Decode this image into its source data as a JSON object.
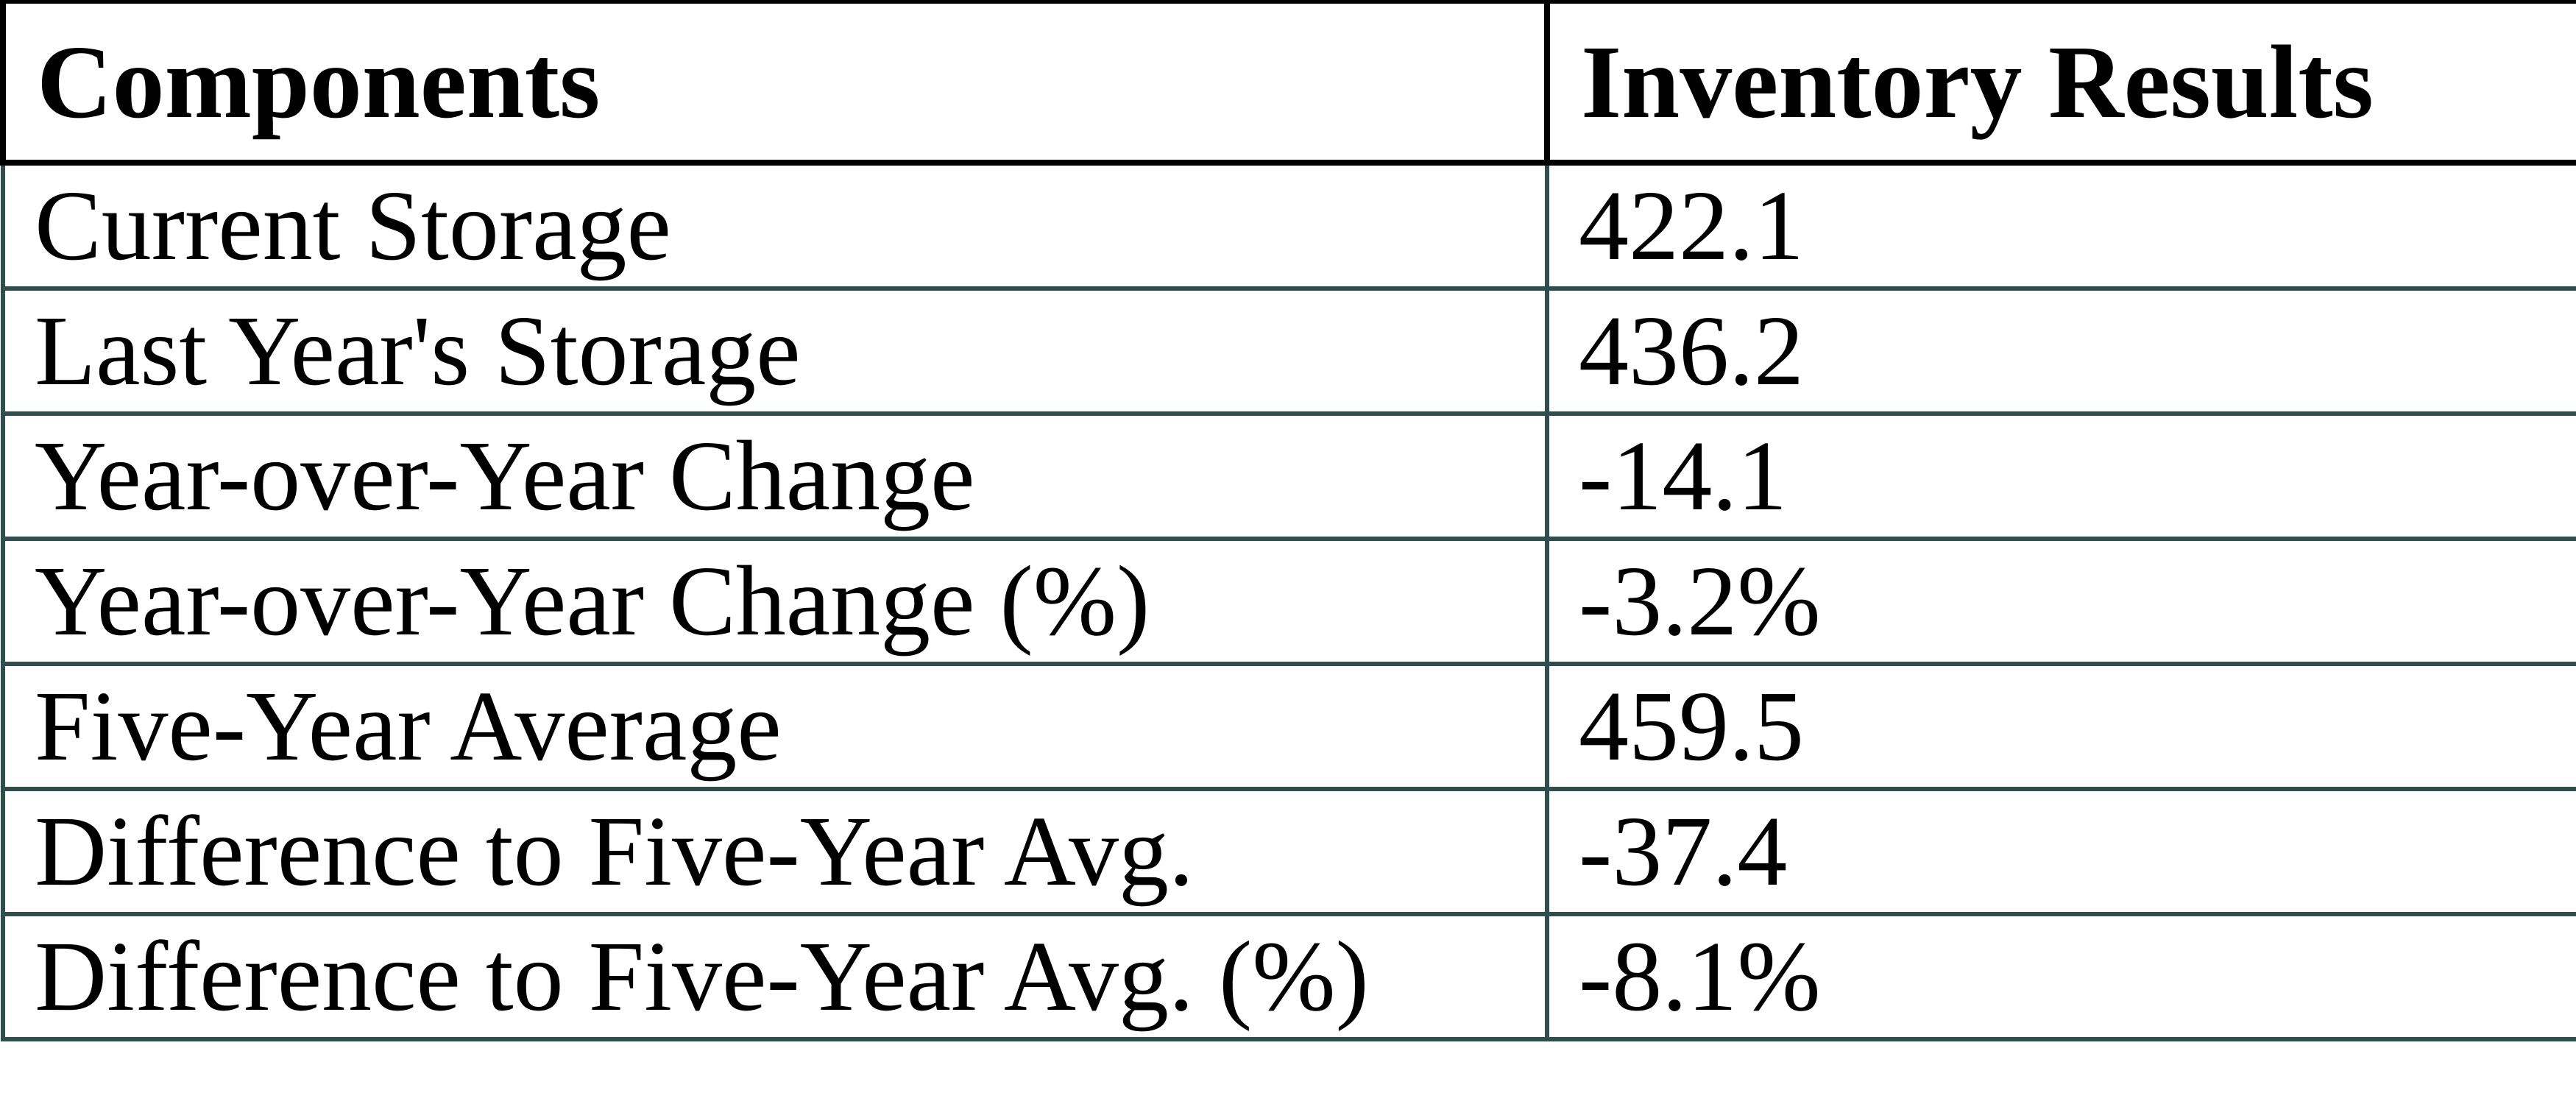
{
  "table": {
    "columns": [
      "Components",
      "Inventory Results"
    ],
    "rows": [
      {
        "component": "Current Storage",
        "value": "422.1"
      },
      {
        "component": "Last Year's Storage",
        "value": "436.2"
      },
      {
        "component": "Year-over-Year Change",
        "value": "-14.1"
      },
      {
        "component": "Year-over-Year Change (%)",
        "value": "-3.2%"
      },
      {
        "component": "Five-Year Average",
        "value": "459.5"
      },
      {
        "component": "Difference to Five-Year Avg.",
        "value": "-37.4"
      },
      {
        "component": "Difference to Five-Year Avg. (%)",
        "value": "-8.1%"
      }
    ]
  },
  "chart_data": {
    "type": "table",
    "title": "Inventory Results",
    "columns": [
      "Components",
      "Inventory Results"
    ],
    "rows": [
      [
        "Current Storage",
        422.1
      ],
      [
        "Last Year's Storage",
        436.2
      ],
      [
        "Year-over-Year Change",
        -14.1
      ],
      [
        "Year-over-Year Change (%)",
        "-3.2%"
      ],
      [
        "Five-Year Average",
        459.5
      ],
      [
        "Difference to Five-Year Avg.",
        -37.4
      ],
      [
        "Difference to Five-Year Avg. (%)",
        "-8.1%"
      ]
    ]
  },
  "colors": {
    "header_border": "#000000",
    "row_border": "#2F4F4F",
    "text": "#000000",
    "background": "#FFFFFF"
  }
}
